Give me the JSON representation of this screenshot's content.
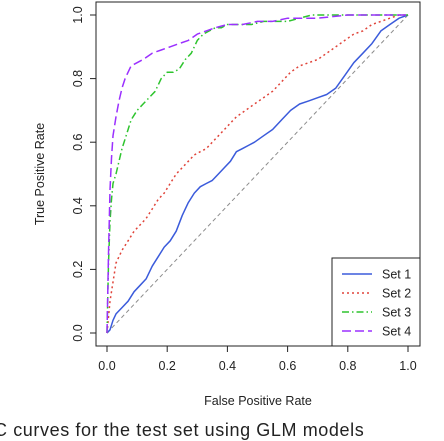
{
  "chart_data": {
    "type": "line",
    "title": "",
    "xlabel": "False Positive Rate",
    "ylabel": "True Positive Rate",
    "xlim": [
      0.0,
      1.0
    ],
    "ylim": [
      0.0,
      1.0
    ],
    "x_ticks": [
      "0.0",
      "0.2",
      "0.4",
      "0.6",
      "0.8",
      "1.0"
    ],
    "y_ticks": [
      "0.0",
      "0.2",
      "0.4",
      "0.6",
      "0.8",
      "1.0"
    ],
    "grid": false,
    "legend_position": "bottom-right",
    "reference_line": {
      "style": "dashed",
      "color": "#8c8c8c",
      "x": [
        0,
        1
      ],
      "y": [
        0,
        1
      ]
    },
    "series": [
      {
        "name": "Set 1",
        "color": "#3b5bdb",
        "dash": "solid",
        "x": [
          0.0,
          0.01,
          0.02,
          0.03,
          0.05,
          0.07,
          0.09,
          0.11,
          0.13,
          0.15,
          0.17,
          0.19,
          0.21,
          0.23,
          0.25,
          0.27,
          0.29,
          0.31,
          0.33,
          0.35,
          0.37,
          0.39,
          0.41,
          0.43,
          0.45,
          0.47,
          0.49,
          0.52,
          0.55,
          0.58,
          0.61,
          0.64,
          0.67,
          0.7,
          0.73,
          0.76,
          0.79,
          0.82,
          0.85,
          0.88,
          0.91,
          0.94,
          0.97,
          1.0
        ],
        "y": [
          0.0,
          0.01,
          0.04,
          0.06,
          0.08,
          0.1,
          0.13,
          0.15,
          0.17,
          0.21,
          0.24,
          0.27,
          0.29,
          0.32,
          0.37,
          0.41,
          0.44,
          0.46,
          0.47,
          0.48,
          0.5,
          0.52,
          0.54,
          0.57,
          0.58,
          0.59,
          0.6,
          0.62,
          0.64,
          0.67,
          0.7,
          0.72,
          0.73,
          0.74,
          0.75,
          0.77,
          0.81,
          0.85,
          0.88,
          0.91,
          0.95,
          0.97,
          0.99,
          1.0
        ]
      },
      {
        "name": "Set 2",
        "color": "#e0443a",
        "dash": "dotted",
        "x": [
          0.0,
          0.01,
          0.02,
          0.03,
          0.05,
          0.07,
          0.09,
          0.11,
          0.13,
          0.15,
          0.17,
          0.19,
          0.21,
          0.23,
          0.25,
          0.27,
          0.29,
          0.31,
          0.33,
          0.35,
          0.37,
          0.39,
          0.41,
          0.43,
          0.46,
          0.49,
          0.52,
          0.55,
          0.58,
          0.61,
          0.64,
          0.67,
          0.7,
          0.73,
          0.76,
          0.79,
          0.82,
          0.85,
          0.88,
          0.91,
          0.94,
          0.97,
          1.0
        ],
        "y": [
          0.0,
          0.1,
          0.16,
          0.22,
          0.26,
          0.29,
          0.32,
          0.34,
          0.36,
          0.39,
          0.42,
          0.44,
          0.47,
          0.5,
          0.52,
          0.54,
          0.56,
          0.57,
          0.58,
          0.6,
          0.62,
          0.64,
          0.66,
          0.68,
          0.7,
          0.72,
          0.74,
          0.76,
          0.79,
          0.82,
          0.84,
          0.85,
          0.86,
          0.88,
          0.9,
          0.92,
          0.94,
          0.95,
          0.97,
          0.98,
          0.99,
          1.0,
          1.0
        ]
      },
      {
        "name": "Set 3",
        "color": "#2ec42e",
        "dash": "dashdot",
        "x": [
          0.0,
          0.005,
          0.01,
          0.015,
          0.02,
          0.03,
          0.04,
          0.05,
          0.06,
          0.07,
          0.08,
          0.1,
          0.12,
          0.14,
          0.16,
          0.18,
          0.2,
          0.22,
          0.24,
          0.26,
          0.28,
          0.3,
          0.32,
          0.34,
          0.36,
          0.38,
          0.4,
          0.44,
          0.48,
          0.52,
          0.56,
          0.6,
          0.64,
          0.68,
          0.72,
          0.8,
          0.9,
          1.0
        ],
        "y": [
          0.0,
          0.22,
          0.35,
          0.42,
          0.47,
          0.5,
          0.54,
          0.58,
          0.61,
          0.64,
          0.67,
          0.7,
          0.72,
          0.74,
          0.76,
          0.8,
          0.82,
          0.82,
          0.83,
          0.86,
          0.88,
          0.92,
          0.94,
          0.95,
          0.96,
          0.96,
          0.97,
          0.97,
          0.97,
          0.98,
          0.98,
          0.98,
          0.99,
          1.0,
          1.0,
          1.0,
          1.0,
          1.0
        ]
      },
      {
        "name": "Set 4",
        "color": "#9b30ff",
        "dash": "longdash",
        "x": [
          0.0,
          0.005,
          0.01,
          0.015,
          0.02,
          0.03,
          0.04,
          0.05,
          0.06,
          0.07,
          0.08,
          0.1,
          0.12,
          0.15,
          0.18,
          0.21,
          0.24,
          0.27,
          0.3,
          0.33,
          0.36,
          0.4,
          0.45,
          0.5,
          0.55,
          0.6,
          0.65,
          0.7,
          0.8,
          0.9,
          1.0
        ],
        "y": [
          0.0,
          0.25,
          0.45,
          0.55,
          0.62,
          0.68,
          0.73,
          0.77,
          0.8,
          0.82,
          0.84,
          0.85,
          0.86,
          0.88,
          0.89,
          0.9,
          0.91,
          0.92,
          0.94,
          0.95,
          0.96,
          0.97,
          0.97,
          0.98,
          0.98,
          0.99,
          0.99,
          0.99,
          1.0,
          1.0,
          1.0
        ]
      }
    ]
  },
  "caption": "C curves for the test set using GLM models"
}
